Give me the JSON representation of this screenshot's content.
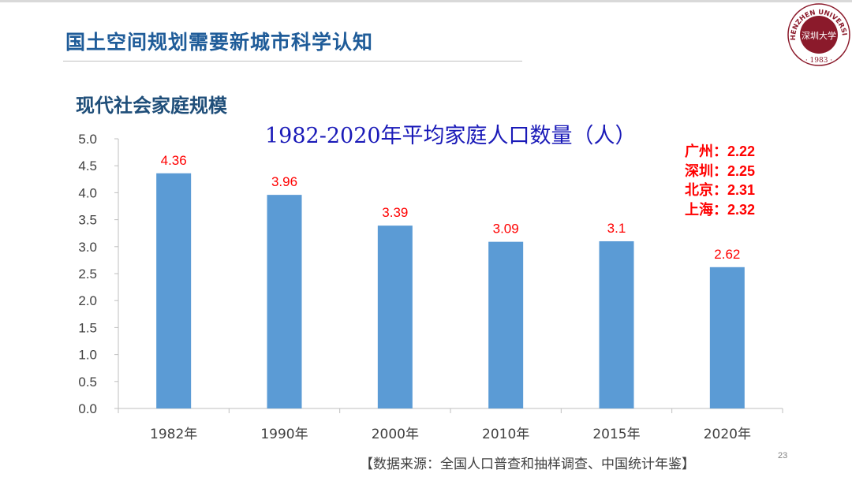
{
  "slide": {
    "title": "国土空间规划需要新城市科学认知",
    "section_title": "现代社会家庭规模",
    "source": "【数据来源：全国人口普查和抽样调查、中国统计年鉴】",
    "page_number": "23"
  },
  "logo": {
    "text_top": "SHENZHEN UNIVERSITY",
    "year": "1983",
    "seal_text": "深圳大学",
    "color": "#8b1a2b"
  },
  "city_notes": [
    "广州：2.22",
    "深圳：2.25",
    "北京：2.31",
    "上海：2.32"
  ],
  "colors": {
    "bar": "#5b9bd5",
    "data_label": "#ff0000",
    "chart_title": "#1a1ab8",
    "slide_title": "#1f5c99"
  },
  "chart_data": {
    "type": "bar",
    "title": "1982-2020年平均家庭人口数量（人）",
    "categories": [
      "1982年",
      "1990年",
      "2000年",
      "2010年",
      "2015年",
      "2020年"
    ],
    "values": [
      4.36,
      3.96,
      3.39,
      3.09,
      3.1,
      2.62
    ],
    "value_labels": [
      "4.36",
      "3.96",
      "3.39",
      "3.09",
      "3.1",
      "2.62"
    ],
    "ylim": [
      0,
      5
    ],
    "yticks": [
      "0.0",
      "0.5",
      "1.0",
      "1.5",
      "2.0",
      "2.5",
      "3.0",
      "3.5",
      "4.0",
      "4.5",
      "5.0"
    ],
    "xlabel": "",
    "ylabel": "",
    "grid": false,
    "legend": "none"
  }
}
